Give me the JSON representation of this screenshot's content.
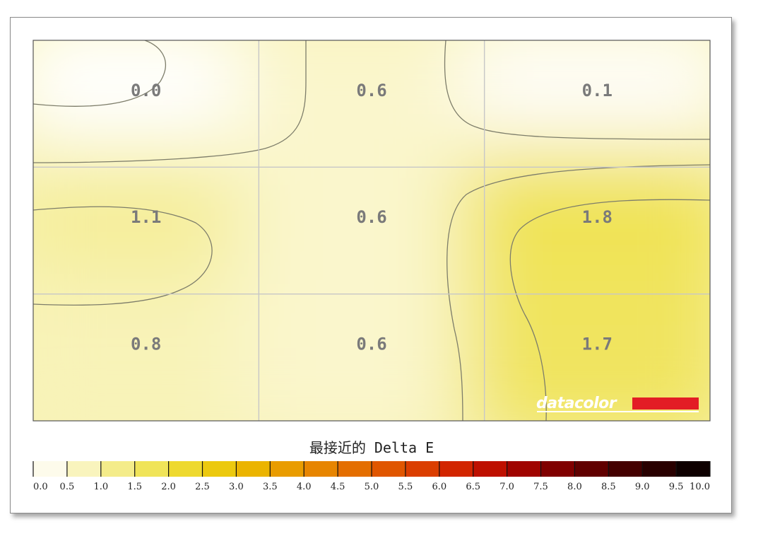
{
  "chart_data": {
    "type": "heatmap",
    "rows": 3,
    "cols": 3,
    "values": [
      [
        0.0,
        0.6,
        0.1
      ],
      [
        1.1,
        0.6,
        1.8
      ],
      [
        0.8,
        0.6,
        1.7
      ]
    ],
    "value_labels": [
      [
        "0.0",
        "0.6",
        "0.1"
      ],
      [
        "1.1",
        "0.6",
        "1.8"
      ],
      [
        "0.8",
        "0.6",
        "1.7"
      ]
    ],
    "colorbar": {
      "title": "最接近的 Delta E",
      "range": [
        0,
        10
      ],
      "ticks": [
        "0.0",
        "0.5",
        "1.0",
        "1.5",
        "2.0",
        "2.5",
        "3.0",
        "3.5",
        "4.0",
        "4.5",
        "5.0",
        "5.5",
        "6.0",
        "6.5",
        "7.0",
        "7.5",
        "8.0",
        "8.5",
        "9.0",
        "9.5",
        "10.0"
      ],
      "colors": [
        "#ffffff",
        "#fbf7d6",
        "#f6f0a4",
        "#f1e870",
        "#efdf42",
        "#ecd21c",
        "#ebc000",
        "#eaa800",
        "#e89000",
        "#e57900",
        "#e26200",
        "#dd4a00",
        "#d83200",
        "#cc1800",
        "#b00800",
        "#900000",
        "#700000",
        "#520000",
        "#360000",
        "#1c0000",
        "#000000"
      ]
    },
    "grid": true,
    "contour_color": "#7d7d6a"
  },
  "logo": {
    "text": "datacolor",
    "bar_color": "#e31d25"
  }
}
